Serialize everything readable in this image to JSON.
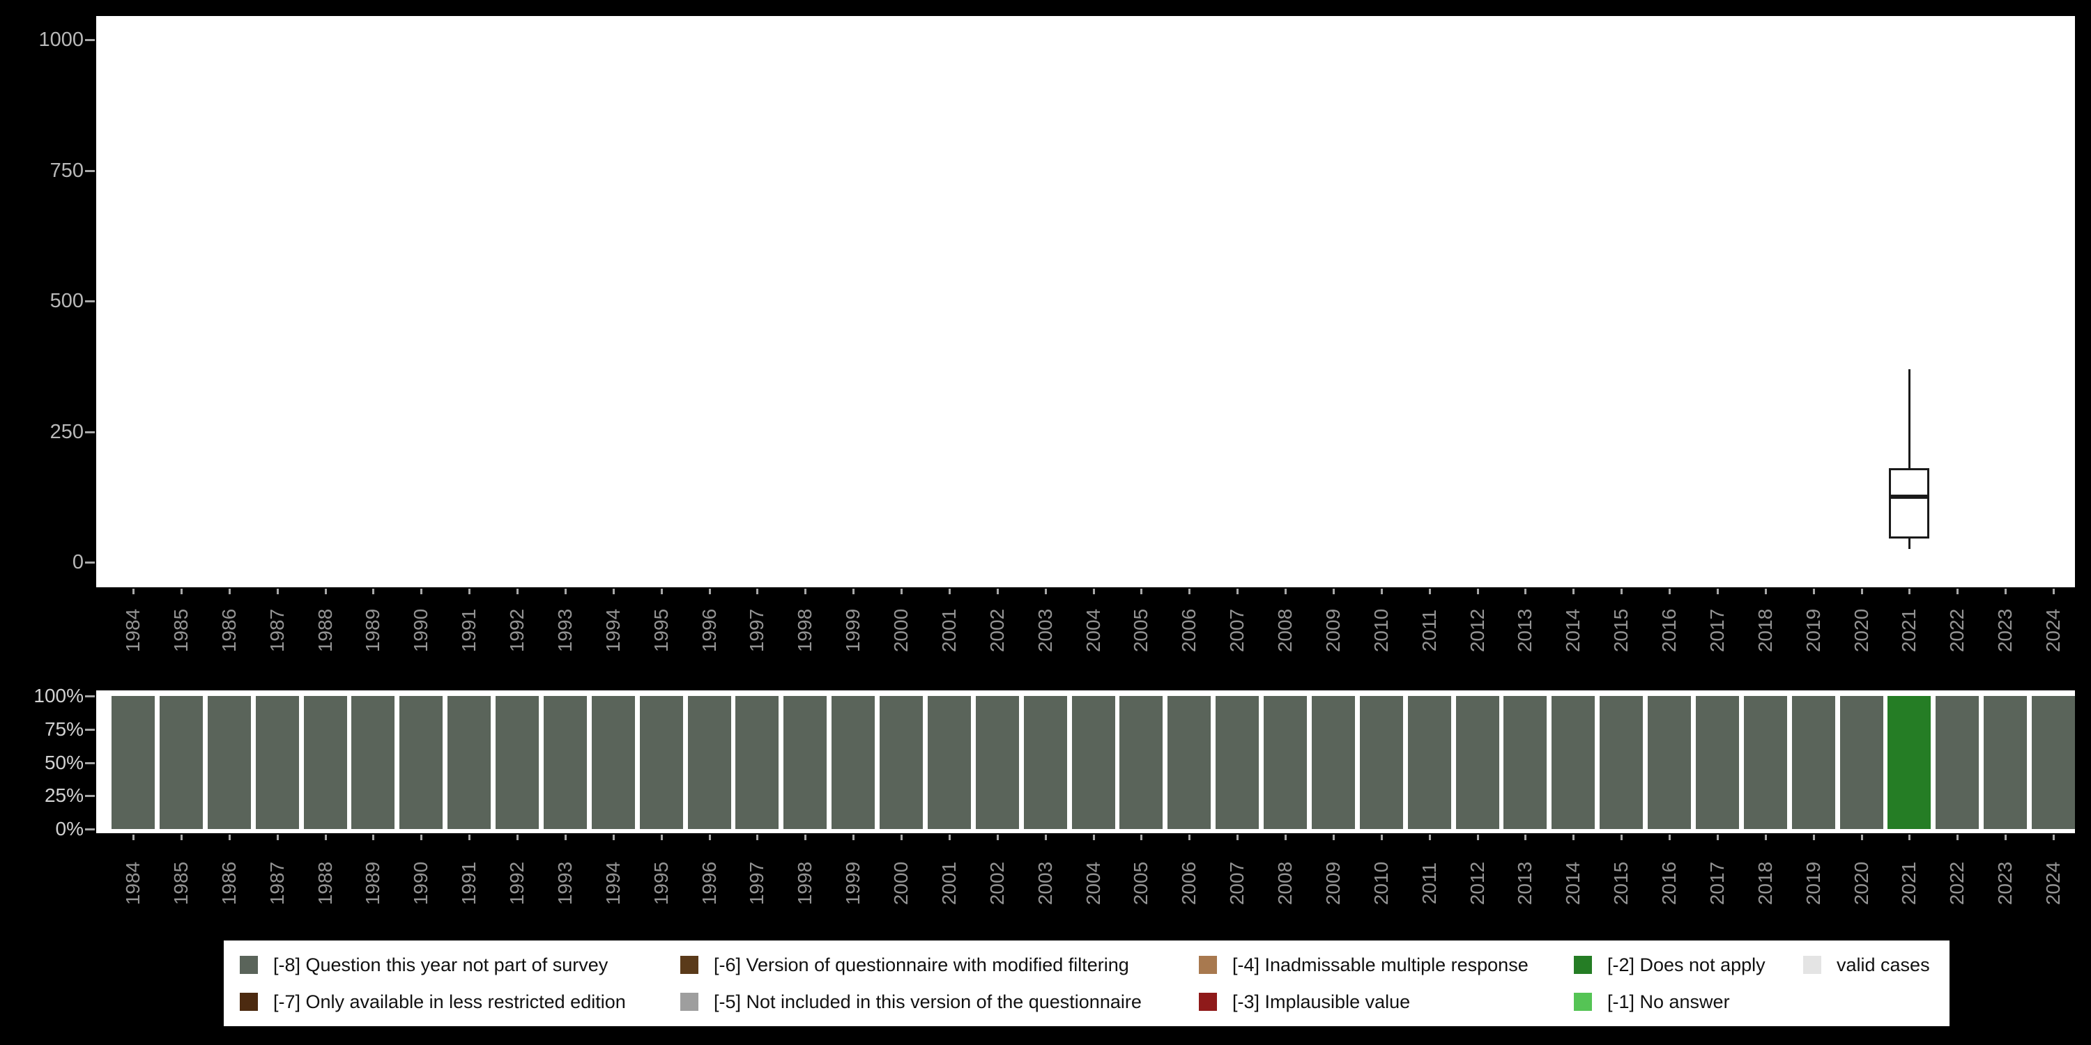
{
  "colors": {
    "background": "#000000",
    "panel": "#ffffff",
    "axis_text_values": "#b8b8b8",
    "axis_text_years": "#949494",
    "axis_text_percent": "#d2d2d2",
    "box_stroke": "#1a1a1a"
  },
  "chart_data": [
    {
      "type": "boxplot",
      "title": "",
      "xlabel": "",
      "ylabel": "",
      "ylim": [
        0,
        1000
      ],
      "y_tick_labels": [
        "1000",
        "750",
        "500",
        "250",
        "0"
      ],
      "y_tick_values": [
        1000,
        750,
        500,
        250,
        0
      ],
      "x": [
        "1984",
        "1985",
        "1986",
        "1987",
        "1988",
        "1989",
        "1990",
        "1991",
        "1992",
        "1993",
        "1994",
        "1995",
        "1996",
        "1997",
        "1998",
        "1999",
        "2000",
        "2001",
        "2002",
        "2003",
        "2004",
        "2005",
        "2006",
        "2007",
        "2008",
        "2009",
        "2010",
        "2011",
        "2012",
        "2013",
        "2014",
        "2015",
        "2016",
        "2017",
        "2018",
        "2019",
        "2020",
        "2021",
        "2022",
        "2023",
        "2024"
      ],
      "series": [
        {
          "year": "2021",
          "whisker_low": 25,
          "q1": 45,
          "median": 125,
          "q3": 180,
          "whisker_high": 370
        }
      ],
      "grid": false,
      "legend_position": "none"
    },
    {
      "type": "bar",
      "stacked": true,
      "title": "",
      "xlabel": "",
      "ylabel": "",
      "ylim_percent": [
        0,
        100
      ],
      "y_tick_labels": [
        "100%",
        "75%",
        "50%",
        "25%",
        "0%"
      ],
      "y_tick_values": [
        100,
        75,
        50,
        25,
        0
      ],
      "categories": [
        "1984",
        "1985",
        "1986",
        "1987",
        "1988",
        "1989",
        "1990",
        "1991",
        "1992",
        "1993",
        "1994",
        "1995",
        "1996",
        "1997",
        "1998",
        "1999",
        "2000",
        "2001",
        "2002",
        "2003",
        "2004",
        "2005",
        "2006",
        "2007",
        "2008",
        "2009",
        "2010",
        "2011",
        "2012",
        "2013",
        "2014",
        "2015",
        "2016",
        "2017",
        "2018",
        "2019",
        "2020",
        "2021",
        "2022",
        "2023",
        "2024"
      ],
      "bars": [
        {
          "year": "1984",
          "category": "-8",
          "pct": 100
        },
        {
          "year": "1985",
          "category": "-8",
          "pct": 100
        },
        {
          "year": "1986",
          "category": "-8",
          "pct": 100
        },
        {
          "year": "1987",
          "category": "-8",
          "pct": 100
        },
        {
          "year": "1988",
          "category": "-8",
          "pct": 100
        },
        {
          "year": "1989",
          "category": "-8",
          "pct": 100
        },
        {
          "year": "1990",
          "category": "-8",
          "pct": 100
        },
        {
          "year": "1991",
          "category": "-8",
          "pct": 100
        },
        {
          "year": "1992",
          "category": "-8",
          "pct": 100
        },
        {
          "year": "1993",
          "category": "-8",
          "pct": 100
        },
        {
          "year": "1994",
          "category": "-8",
          "pct": 100
        },
        {
          "year": "1995",
          "category": "-8",
          "pct": 100
        },
        {
          "year": "1996",
          "category": "-8",
          "pct": 100
        },
        {
          "year": "1997",
          "category": "-8",
          "pct": 100
        },
        {
          "year": "1998",
          "category": "-8",
          "pct": 100
        },
        {
          "year": "1999",
          "category": "-8",
          "pct": 100
        },
        {
          "year": "2000",
          "category": "-8",
          "pct": 100
        },
        {
          "year": "2001",
          "category": "-8",
          "pct": 100
        },
        {
          "year": "2002",
          "category": "-8",
          "pct": 100
        },
        {
          "year": "2003",
          "category": "-8",
          "pct": 100
        },
        {
          "year": "2004",
          "category": "-8",
          "pct": 100
        },
        {
          "year": "2005",
          "category": "-8",
          "pct": 100
        },
        {
          "year": "2006",
          "category": "-8",
          "pct": 100
        },
        {
          "year": "2007",
          "category": "-8",
          "pct": 100
        },
        {
          "year": "2008",
          "category": "-8",
          "pct": 100
        },
        {
          "year": "2009",
          "category": "-8",
          "pct": 100
        },
        {
          "year": "2010",
          "category": "-8",
          "pct": 100
        },
        {
          "year": "2011",
          "category": "-8",
          "pct": 100
        },
        {
          "year": "2012",
          "category": "-8",
          "pct": 100
        },
        {
          "year": "2013",
          "category": "-8",
          "pct": 100
        },
        {
          "year": "2014",
          "category": "-8",
          "pct": 100
        },
        {
          "year": "2015",
          "category": "-8",
          "pct": 100
        },
        {
          "year": "2016",
          "category": "-8",
          "pct": 100
        },
        {
          "year": "2017",
          "category": "-8",
          "pct": 100
        },
        {
          "year": "2018",
          "category": "-8",
          "pct": 100
        },
        {
          "year": "2019",
          "category": "-8",
          "pct": 100
        },
        {
          "year": "2020",
          "category": "-8",
          "pct": 100
        },
        {
          "year": "2021",
          "category": "-2",
          "pct": 100
        },
        {
          "year": "2022",
          "category": "-8",
          "pct": 100
        },
        {
          "year": "2023",
          "category": "-8",
          "pct": 100
        },
        {
          "year": "2024",
          "category": "-8",
          "pct": 100
        }
      ],
      "grid": false,
      "legend_position": "bottom"
    }
  ],
  "legend": {
    "colors": {
      "-8": "#5a645a",
      "-7": "#4c2a10",
      "-6": "#5a3a1a",
      "-5": "#9e9e9e",
      "-4": "#a8794f",
      "-3": "#8f1a1a",
      "-2": "#257d25",
      "-1": "#55c455",
      "valid": "#e4e4e4"
    },
    "rows": [
      [
        {
          "key": "-8",
          "label": "[-8] Question this year not part of survey"
        },
        {
          "key": "-6",
          "label": "[-6] Version of questionnaire with modified filtering"
        },
        {
          "key": "-4",
          "label": "[-4] Inadmissable multiple response"
        },
        {
          "key": "-2",
          "label": "[-2] Does not apply"
        },
        {
          "key": "valid",
          "label": "valid cases"
        }
      ],
      [
        {
          "key": "-7",
          "label": "[-7] Only available in less restricted edition"
        },
        {
          "key": "-5",
          "label": "[-5] Not included in this version of the questionnaire"
        },
        {
          "key": "-3",
          "label": "[-3] Implausible value"
        },
        {
          "key": "-1",
          "label": "[-1] No answer"
        }
      ]
    ]
  }
}
